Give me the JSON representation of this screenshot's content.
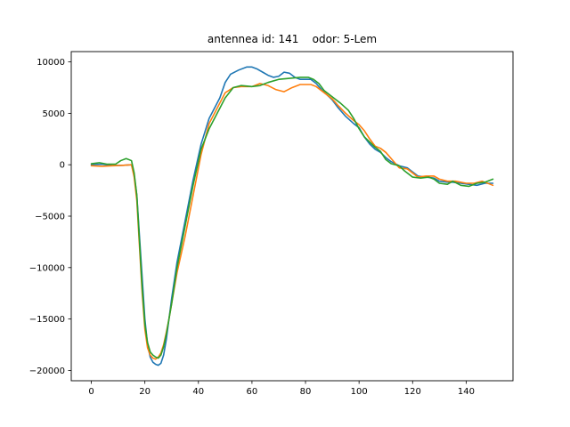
{
  "chart_data": {
    "type": "line",
    "title": "antennea id: 141    odor: 5-Lem",
    "xlabel": "",
    "ylabel": "",
    "xlim": [
      -7.5,
      157.5
    ],
    "ylim": [
      -21000,
      11000
    ],
    "xticks": [
      0,
      20,
      40,
      60,
      80,
      100,
      120,
      140
    ],
    "yticks": [
      -20000,
      -15000,
      -10000,
      -5000,
      0,
      5000,
      10000
    ],
    "grid": false,
    "legend": "none",
    "series": [
      {
        "color": "#1f77b4",
        "points": [
          [
            0,
            0
          ],
          [
            4,
            50
          ],
          [
            8,
            -80
          ],
          [
            12,
            -50
          ],
          [
            15,
            0
          ],
          [
            16,
            -1000
          ],
          [
            17,
            -3000
          ],
          [
            18,
            -7000
          ],
          [
            19,
            -11000
          ],
          [
            20,
            -15000
          ],
          [
            21,
            -17500
          ],
          [
            22,
            -18700
          ],
          [
            23,
            -19200
          ],
          [
            24,
            -19400
          ],
          [
            25,
            -19500
          ],
          [
            26,
            -19300
          ],
          [
            27,
            -18500
          ],
          [
            28,
            -17000
          ],
          [
            29,
            -15000
          ],
          [
            30,
            -13000
          ],
          [
            32,
            -9500
          ],
          [
            35,
            -5500
          ],
          [
            38,
            -1500
          ],
          [
            41,
            2000
          ],
          [
            44,
            4500
          ],
          [
            48,
            6500
          ],
          [
            50,
            8000
          ],
          [
            52,
            8800
          ],
          [
            55,
            9200
          ],
          [
            58,
            9500
          ],
          [
            60,
            9500
          ],
          [
            62,
            9300
          ],
          [
            64,
            9000
          ],
          [
            66,
            8700
          ],
          [
            68,
            8500
          ],
          [
            70,
            8600
          ],
          [
            72,
            9000
          ],
          [
            74,
            8900
          ],
          [
            76,
            8500
          ],
          [
            78,
            8300
          ],
          [
            80,
            8300
          ],
          [
            82,
            8300
          ],
          [
            84,
            7900
          ],
          [
            86,
            7300
          ],
          [
            88,
            6800
          ],
          [
            90,
            6300
          ],
          [
            92,
            5600
          ],
          [
            95,
            4700
          ],
          [
            98,
            4000
          ],
          [
            100,
            3600
          ],
          [
            102,
            2700
          ],
          [
            104,
            2000
          ],
          [
            106,
            1500
          ],
          [
            108,
            1200
          ],
          [
            110,
            700
          ],
          [
            112,
            300
          ],
          [
            115,
            -100
          ],
          [
            118,
            -300
          ],
          [
            120,
            -700
          ],
          [
            122,
            -1100
          ],
          [
            125,
            -1200
          ],
          [
            128,
            -1300
          ],
          [
            130,
            -1600
          ],
          [
            133,
            -1700
          ],
          [
            135,
            -1700
          ],
          [
            138,
            -1800
          ],
          [
            141,
            -1900
          ],
          [
            144,
            -2000
          ],
          [
            147,
            -1800
          ],
          [
            150,
            -1800
          ]
        ]
      },
      {
        "color": "#ff7f0e",
        "points": [
          [
            0,
            -100
          ],
          [
            4,
            -150
          ],
          [
            8,
            -100
          ],
          [
            12,
            -50
          ],
          [
            15,
            0
          ],
          [
            16,
            -1200
          ],
          [
            17,
            -3500
          ],
          [
            18,
            -8000
          ],
          [
            19,
            -12500
          ],
          [
            20,
            -16000
          ],
          [
            21,
            -17800
          ],
          [
            22,
            -18500
          ],
          [
            23,
            -18800
          ],
          [
            24,
            -18900
          ],
          [
            25,
            -18700
          ],
          [
            26,
            -18300
          ],
          [
            27,
            -17500
          ],
          [
            28,
            -16300
          ],
          [
            29,
            -15000
          ],
          [
            30,
            -13500
          ],
          [
            32,
            -10500
          ],
          [
            35,
            -7000
          ],
          [
            38,
            -3000
          ],
          [
            41,
            1000
          ],
          [
            44,
            4000
          ],
          [
            48,
            6000
          ],
          [
            50,
            7000
          ],
          [
            53,
            7500
          ],
          [
            56,
            7600
          ],
          [
            60,
            7600
          ],
          [
            63,
            7900
          ],
          [
            66,
            7700
          ],
          [
            69,
            7300
          ],
          [
            72,
            7100
          ],
          [
            75,
            7500
          ],
          [
            78,
            7800
          ],
          [
            80,
            7800
          ],
          [
            82,
            7800
          ],
          [
            84,
            7600
          ],
          [
            86,
            7200
          ],
          [
            88,
            6800
          ],
          [
            90,
            6400
          ],
          [
            92,
            5800
          ],
          [
            95,
            5000
          ],
          [
            98,
            4300
          ],
          [
            100,
            3900
          ],
          [
            102,
            3300
          ],
          [
            104,
            2500
          ],
          [
            106,
            1800
          ],
          [
            108,
            1600
          ],
          [
            110,
            1200
          ],
          [
            112,
            600
          ],
          [
            115,
            -300
          ],
          [
            118,
            -400
          ],
          [
            120,
            -800
          ],
          [
            122,
            -1200
          ],
          [
            125,
            -1100
          ],
          [
            128,
            -1100
          ],
          [
            130,
            -1400
          ],
          [
            133,
            -1600
          ],
          [
            136,
            -1600
          ],
          [
            140,
            -1800
          ],
          [
            143,
            -1800
          ],
          [
            146,
            -1600
          ],
          [
            150,
            -2000
          ]
        ]
      },
      {
        "color": "#2ca02c",
        "points": [
          [
            0,
            100
          ],
          [
            3,
            200
          ],
          [
            6,
            50
          ],
          [
            9,
            50
          ],
          [
            11,
            400
          ],
          [
            13,
            600
          ],
          [
            15,
            400
          ],
          [
            16,
            -800
          ],
          [
            17,
            -3000
          ],
          [
            18,
            -7500
          ],
          [
            19,
            -12000
          ],
          [
            20,
            -15500
          ],
          [
            21,
            -17300
          ],
          [
            22,
            -18200
          ],
          [
            23,
            -18500
          ],
          [
            24,
            -18700
          ],
          [
            25,
            -18800
          ],
          [
            26,
            -18500
          ],
          [
            27,
            -17700
          ],
          [
            28,
            -16500
          ],
          [
            29,
            -15000
          ],
          [
            30,
            -13500
          ],
          [
            32,
            -10000
          ],
          [
            35,
            -6000
          ],
          [
            38,
            -2000
          ],
          [
            41,
            1500
          ],
          [
            44,
            3500
          ],
          [
            48,
            5500
          ],
          [
            50,
            6500
          ],
          [
            53,
            7500
          ],
          [
            56,
            7700
          ],
          [
            60,
            7600
          ],
          [
            63,
            7700
          ],
          [
            66,
            8000
          ],
          [
            70,
            8300
          ],
          [
            74,
            8400
          ],
          [
            78,
            8500
          ],
          [
            81,
            8500
          ],
          [
            83,
            8300
          ],
          [
            85,
            7900
          ],
          [
            87,
            7200
          ],
          [
            90,
            6600
          ],
          [
            93,
            6000
          ],
          [
            96,
            5300
          ],
          [
            98,
            4500
          ],
          [
            100,
            3500
          ],
          [
            102,
            2700
          ],
          [
            104,
            2200
          ],
          [
            106,
            1700
          ],
          [
            108,
            1300
          ],
          [
            110,
            500
          ],
          [
            112,
            100
          ],
          [
            115,
            -100
          ],
          [
            117,
            -600
          ],
          [
            120,
            -1200
          ],
          [
            123,
            -1300
          ],
          [
            126,
            -1200
          ],
          [
            128,
            -1400
          ],
          [
            130,
            -1800
          ],
          [
            133,
            -1900
          ],
          [
            135,
            -1600
          ],
          [
            138,
            -2000
          ],
          [
            141,
            -2100
          ],
          [
            144,
            -1800
          ],
          [
            147,
            -1700
          ],
          [
            150,
            -1400
          ]
        ]
      }
    ]
  }
}
